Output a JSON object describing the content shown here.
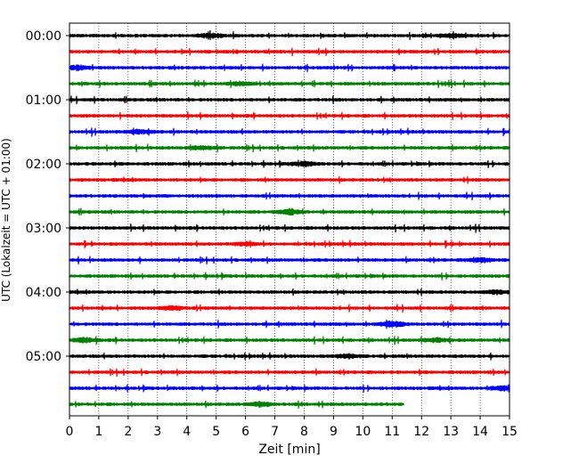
{
  "chart_data": {
    "type": "line",
    "xlabel": "Zeit  [min]",
    "ylabel": "UTC (Lokalzeit = UTC + 01:00)",
    "xlim": [
      0,
      15
    ],
    "x_ticks": [
      "0",
      "1",
      "2",
      "3",
      "4",
      "5",
      "6",
      "7",
      "8",
      "9",
      "10",
      "11",
      "12",
      "13",
      "14",
      "15"
    ],
    "y_ticks": [
      "00:00",
      "01:00",
      "02:00",
      "03:00",
      "04:00",
      "05:00"
    ],
    "grid": "vertical-dotted",
    "colors": [
      "#000000",
      "#ff0000",
      "#0000ff",
      "#008000"
    ],
    "trace_interval_minutes": 15,
    "trace_count": 24,
    "last_trace_end_minute": 11.4,
    "noise_bursts": [
      {
        "trace": 0,
        "minute": 4.8,
        "amp": 1.6
      },
      {
        "trace": 0,
        "minute": 13.0,
        "amp": 1.2
      },
      {
        "trace": 2,
        "minute": 0.3,
        "amp": 1.5
      },
      {
        "trace": 3,
        "minute": 5.8,
        "amp": 1.2
      },
      {
        "trace": 6,
        "minute": 2.4,
        "amp": 1.3
      },
      {
        "trace": 7,
        "minute": 4.5,
        "amp": 1.3
      },
      {
        "trace": 8,
        "minute": 8.0,
        "amp": 1.5
      },
      {
        "trace": 11,
        "minute": 7.5,
        "amp": 1.8
      },
      {
        "trace": 13,
        "minute": 6.0,
        "amp": 1.2
      },
      {
        "trace": 14,
        "minute": 14.0,
        "amp": 1.3
      },
      {
        "trace": 16,
        "minute": 14.5,
        "amp": 1.4
      },
      {
        "trace": 17,
        "minute": 3.5,
        "amp": 1.4
      },
      {
        "trace": 18,
        "minute": 11.0,
        "amp": 2.0
      },
      {
        "trace": 19,
        "minute": 0.5,
        "amp": 1.5
      },
      {
        "trace": 19,
        "minute": 12.5,
        "amp": 1.3
      },
      {
        "trace": 20,
        "minute": 9.5,
        "amp": 1.5
      },
      {
        "trace": 22,
        "minute": 14.8,
        "amp": 1.6
      },
      {
        "trace": 23,
        "minute": 6.5,
        "amp": 1.5
      }
    ]
  }
}
